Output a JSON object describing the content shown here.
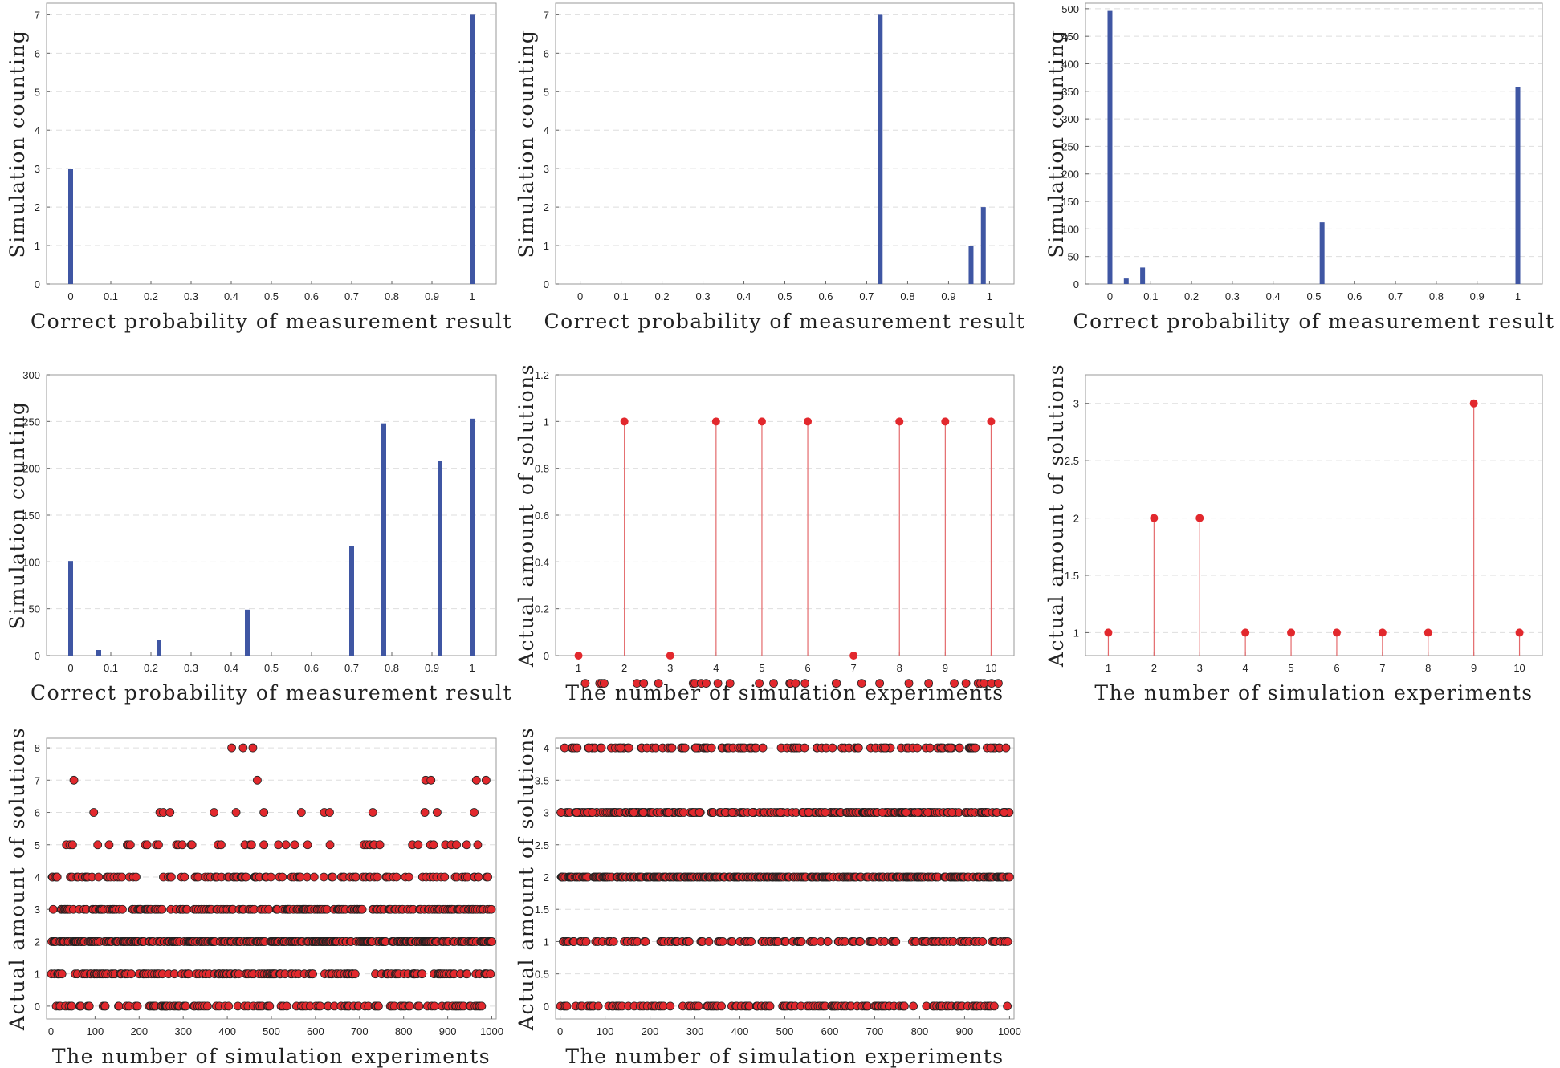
{
  "chart_data": [
    {
      "type": "bar",
      "xlabel": "Correct probability of measurement result",
      "ylabel": "Simulation counting",
      "xlim": [
        -0.06,
        1.06
      ],
      "ylim": [
        0,
        7.3
      ],
      "xticks": [
        0,
        0.1,
        0.2,
        0.3,
        0.4,
        0.5,
        0.6,
        0.7,
        0.8,
        0.9,
        1
      ],
      "yticks": [
        0,
        1,
        2,
        3,
        4,
        5,
        6,
        7
      ],
      "grid": true,
      "color": "#3f56a3",
      "x": [
        0,
        1
      ],
      "values": [
        3,
        7
      ]
    },
    {
      "type": "bar",
      "xlabel": "Correct probability of measurement result",
      "ylabel": "Simulation counting",
      "xlim": [
        -0.06,
        1.06
      ],
      "ylim": [
        0,
        7.3
      ],
      "xticks": [
        0,
        0.1,
        0.2,
        0.3,
        0.4,
        0.5,
        0.6,
        0.7,
        0.8,
        0.9,
        1
      ],
      "yticks": [
        0,
        1,
        2,
        3,
        4,
        5,
        6,
        7
      ],
      "grid": true,
      "color": "#3f56a3",
      "x": [
        0.733,
        0.955,
        0.985
      ],
      "values": [
        7,
        1,
        2
      ]
    },
    {
      "type": "bar",
      "xlabel": "Correct probability of measurement result",
      "ylabel": "Simulation counting",
      "xlim": [
        -0.06,
        1.06
      ],
      "ylim": [
        0,
        510
      ],
      "xticks": [
        0,
        0.1,
        0.2,
        0.3,
        0.4,
        0.5,
        0.6,
        0.7,
        0.8,
        0.9,
        1
      ],
      "yticks": [
        0,
        50,
        100,
        150,
        200,
        250,
        300,
        350,
        400,
        450,
        500
      ],
      "grid": true,
      "color": "#3f56a3",
      "x": [
        0,
        0.04,
        0.08,
        0.52,
        1
      ],
      "values": [
        496,
        10,
        30,
        112,
        357
      ]
    },
    {
      "type": "bar",
      "xlabel": "Correct probability of measurement result",
      "ylabel": "Simulation counting",
      "xlim": [
        -0.06,
        1.06
      ],
      "ylim": [
        0,
        300
      ],
      "xticks": [
        0,
        0.1,
        0.2,
        0.3,
        0.4,
        0.5,
        0.6,
        0.7,
        0.8,
        0.9,
        1
      ],
      "yticks": [
        0,
        50,
        100,
        150,
        200,
        250,
        300
      ],
      "grid": true,
      "color": "#3f56a3",
      "x": [
        0,
        0.07,
        0.22,
        0.44,
        0.7,
        0.78,
        0.92,
        1
      ],
      "values": [
        101,
        6,
        17,
        49,
        117,
        248,
        208,
        253
      ]
    },
    {
      "type": "scatter",
      "xlabel": "The number of simulation experiments",
      "ylabel": "Actual amount of solutions",
      "xlim": [
        0.5,
        10.5
      ],
      "ylim": [
        0,
        1.2
      ],
      "xticks": [
        1,
        2,
        3,
        4,
        5,
        6,
        7,
        8,
        9,
        10
      ],
      "yticks": [
        0,
        0.2,
        0.4,
        0.6,
        0.8,
        1,
        1.2
      ],
      "grid": true,
      "color": "#e2282d",
      "x": [
        1,
        2,
        3,
        4,
        5,
        6,
        7,
        8,
        9,
        10
      ],
      "values": [
        0,
        1,
        0,
        1,
        1,
        1,
        0,
        1,
        1,
        1
      ]
    },
    {
      "type": "scatter",
      "xlabel": "The number of simulation experiments",
      "ylabel": "Actual amount of solutions",
      "xlim": [
        0.5,
        10.5
      ],
      "ylim": [
        0.8,
        3.25
      ],
      "xticks": [
        1,
        2,
        3,
        4,
        5,
        6,
        7,
        8,
        9,
        10
      ],
      "yticks": [
        1,
        1.5,
        2,
        2.5,
        3
      ],
      "grid": true,
      "color": "#e2282d",
      "x": [
        1,
        2,
        3,
        4,
        5,
        6,
        7,
        8,
        9,
        10
      ],
      "values": [
        1,
        2,
        2,
        1,
        1,
        1,
        1,
        1,
        3,
        1
      ]
    },
    {
      "type": "scatter",
      "xlabel": "The number of simulation experiments",
      "ylabel": "Actual amount of solutions",
      "xlim": [
        -10,
        1010
      ],
      "ylim": [
        -0.4,
        8.3
      ],
      "xticks": [
        0,
        100,
        200,
        300,
        400,
        500,
        600,
        700,
        800,
        900,
        1000
      ],
      "yticks": [
        0,
        1,
        2,
        3,
        4,
        5,
        6,
        7,
        8
      ],
      "grid": true,
      "color": "#e2282d",
      "n_points": 1000,
      "sparse_points": [
        [
          52,
          7
        ],
        [
          468,
          7
        ],
        [
          850,
          7
        ],
        [
          862,
          7
        ],
        [
          965,
          7
        ],
        [
          987,
          7
        ],
        [
          410,
          8
        ],
        [
          436,
          8
        ],
        [
          458,
          8
        ],
        [
          97,
          6
        ],
        [
          247,
          6
        ],
        [
          255,
          6
        ],
        [
          270,
          6
        ],
        [
          370,
          6
        ],
        [
          420,
          6
        ],
        [
          483,
          6
        ],
        [
          568,
          6
        ],
        [
          620,
          6
        ],
        [
          632,
          6
        ],
        [
          730,
          6
        ],
        [
          848,
          6
        ],
        [
          876,
          6
        ],
        [
          960,
          6
        ]
      ]
    },
    {
      "type": "scatter",
      "xlabel": "The number of simulation experiments",
      "ylabel": "Actual amount of solutions",
      "xlim": [
        -10,
        1010
      ],
      "ylim": [
        -0.2,
        4.15
      ],
      "xticks": [
        0,
        100,
        200,
        300,
        400,
        500,
        600,
        700,
        800,
        900,
        1000
      ],
      "yticks": [
        0,
        0.5,
        1,
        1.5,
        2,
        2.5,
        3,
        3.5,
        4
      ],
      "grid": true,
      "color": "#e2282d",
      "n_points": 1000,
      "sparse_points": [
        [
          64,
          4
        ],
        [
          135,
          4
        ],
        [
          182,
          4
        ],
        [
          193,
          4
        ],
        [
          302,
          4
        ],
        [
          337,
          4
        ],
        [
          723,
          4
        ],
        [
          869,
          4
        ],
        [
          958,
          4
        ],
        [
          2,
          3
        ],
        [
          37,
          3
        ],
        [
          62,
          3
        ],
        [
          72,
          3
        ],
        [
          164,
          3
        ],
        [
          185,
          3
        ],
        [
          242,
          3
        ],
        [
          298,
          3
        ],
        [
          310,
          3
        ],
        [
          368,
          3
        ],
        [
          383,
          3
        ],
        [
          428,
          3
        ],
        [
          490,
          3
        ],
        [
          541,
          3
        ],
        [
          553,
          3
        ],
        [
          583,
          3
        ],
        [
          590,
          3
        ],
        [
          717,
          3
        ],
        [
          770,
          3
        ],
        [
          796,
          3
        ],
        [
          818,
          3
        ],
        [
          863,
          3
        ],
        [
          872,
          3
        ],
        [
          988,
          3
        ]
      ]
    }
  ]
}
